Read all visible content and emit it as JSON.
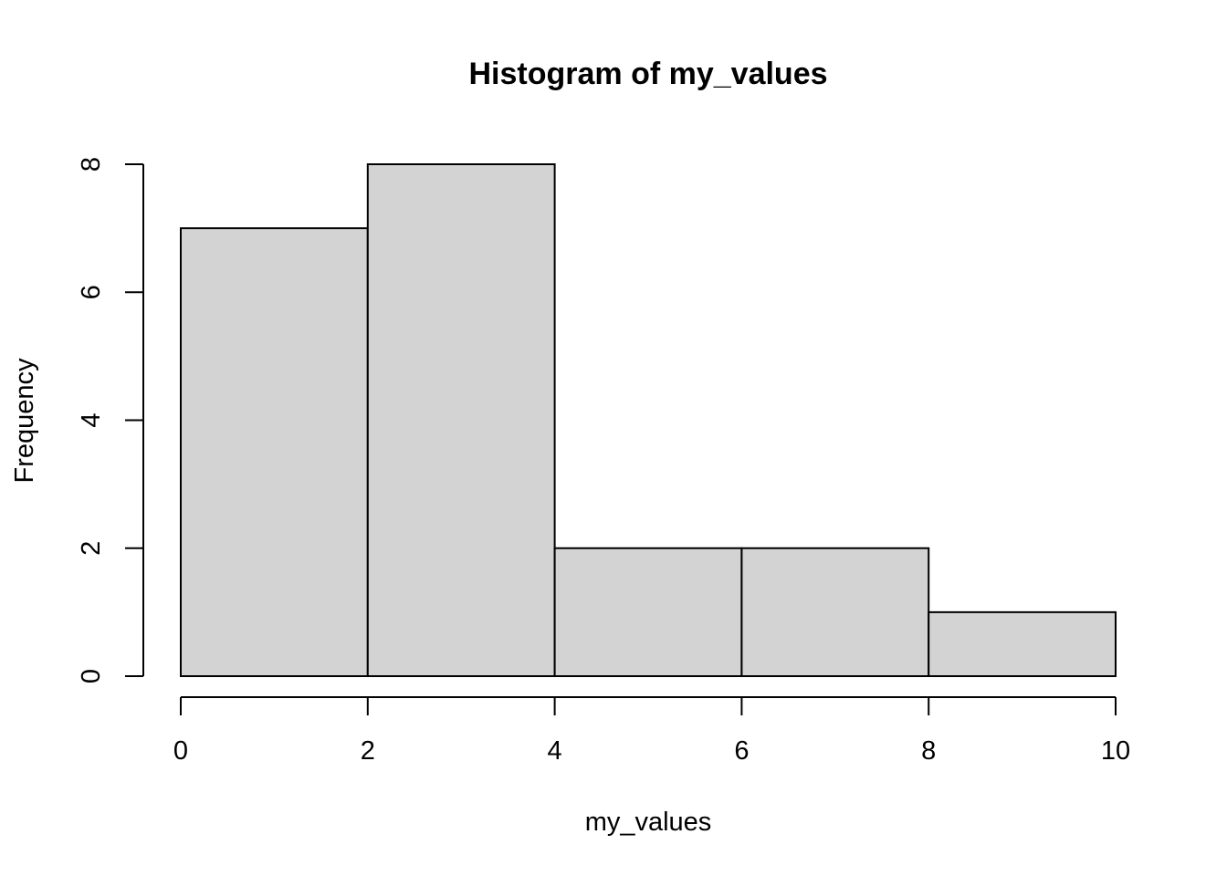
{
  "chart_data": {
    "type": "bar",
    "title": "Histogram of my_values",
    "xlabel": "my_values",
    "ylabel": "Frequency",
    "bins": [
      {
        "start": 0,
        "end": 2,
        "count": 7
      },
      {
        "start": 2,
        "end": 4,
        "count": 8
      },
      {
        "start": 4,
        "end": 6,
        "count": 2
      },
      {
        "start": 6,
        "end": 8,
        "count": 2
      },
      {
        "start": 8,
        "end": 10,
        "count": 1
      }
    ],
    "xlim": [
      0,
      10
    ],
    "ylim": [
      0,
      8
    ],
    "x_ticks": [
      "0",
      "2",
      "4",
      "6",
      "8",
      "10"
    ],
    "y_ticks": [
      "0",
      "2",
      "4",
      "6",
      "8"
    ],
    "bar_color": "#d3d3d3",
    "grid": false
  }
}
